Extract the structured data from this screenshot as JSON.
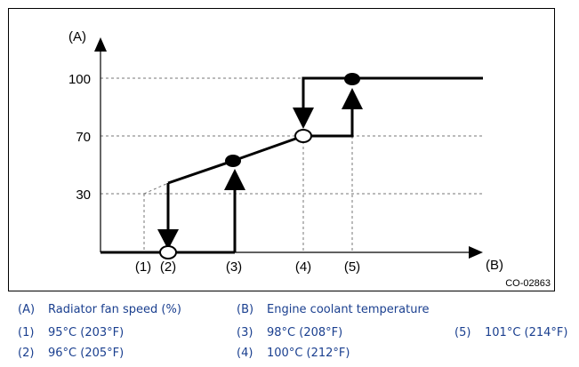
{
  "figure": {
    "code": "CO-02863",
    "axis_y_label": "(A)",
    "axis_x_label": "(B)",
    "y_ticks": [
      "100",
      "70",
      "30"
    ],
    "x_markers": [
      "(1)",
      "(2)",
      "(3)",
      "(4)",
      "(5)"
    ]
  },
  "legend": [
    {
      "key": "(A)",
      "text": "Radiator fan speed (%)"
    },
    {
      "key": "(B)",
      "text": "Engine coolant temperature"
    },
    {
      "key": "(1)",
      "text": "95°C (203°F)"
    },
    {
      "key": "(3)",
      "text": "98°C (208°F)"
    },
    {
      "key": "(5)",
      "text": "101°C (214°F)"
    },
    {
      "key": "(2)",
      "text": "96°C (205°F)"
    },
    {
      "key": "(4)",
      "text": "100°C (212°F)"
    }
  ]
}
